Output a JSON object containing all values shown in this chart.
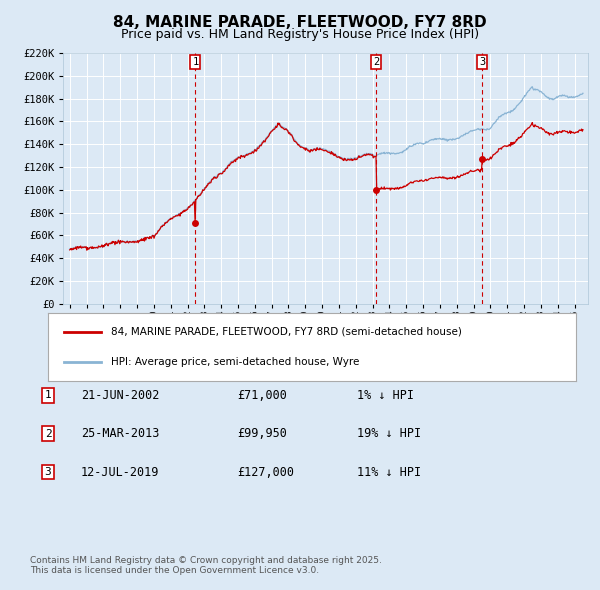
{
  "title": "84, MARINE PARADE, FLEETWOOD, FY7 8RD",
  "subtitle": "Price paid vs. HM Land Registry's House Price Index (HPI)",
  "title_fontsize": 11,
  "subtitle_fontsize": 9,
  "bg_color": "#dce9f5",
  "red_line_color": "#cc0000",
  "blue_line_color": "#8ab4d4",
  "grid_color": "#ffffff",
  "vline_color": "#cc0000",
  "transactions": [
    {
      "label": "1",
      "date": "21-JUN-2002",
      "price": 71000,
      "pct": "1% ↓ HPI",
      "date_num": 2002.47
    },
    {
      "label": "2",
      "date": "25-MAR-2013",
      "price": 99950,
      "pct": "19% ↓ HPI",
      "date_num": 2013.23
    },
    {
      "label": "3",
      "date": "12-JUL-2019",
      "price": 127000,
      "pct": "11% ↓ HPI",
      "date_num": 2019.53
    }
  ],
  "ylim": [
    0,
    220000
  ],
  "ytick_step": 20000,
  "xlim_start": 1994.6,
  "xlim_end": 2025.8,
  "legend_label_red": "84, MARINE PARADE, FLEETWOOD, FY7 8RD (semi-detached house)",
  "legend_label_blue": "HPI: Average price, semi-detached house, Wyre",
  "footer": "Contains HM Land Registry data © Crown copyright and database right 2025.\nThis data is licensed under the Open Government Licence v3.0."
}
